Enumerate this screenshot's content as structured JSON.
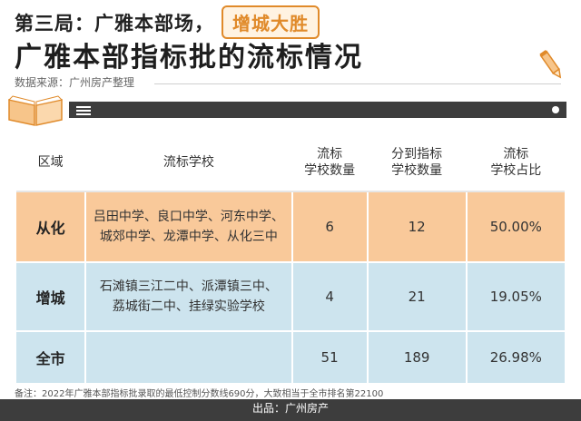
{
  "header": {
    "line1": "第三局：广雅本部场，",
    "badge": "增城大胜",
    "title": "广雅本部指标批的流标情况",
    "source": "数据来源：广州房产整理"
  },
  "table": {
    "columns": [
      "区域",
      "流标学校",
      "流标\n学校数量",
      "分到指标\n学校数量",
      "流标\n学校占比"
    ],
    "rows": [
      {
        "region": "从化",
        "schools_line1": "吕田中学、良口中学、河东中学、",
        "schools_line2": "城郊中学、龙潭中学、从化三中",
        "failed_count": "6",
        "assigned_count": "12",
        "ratio": "50.00%"
      },
      {
        "region": "增城",
        "schools_line1": "石滩镇三江二中、派潭镇三中、",
        "schools_line2": "荔城街二中、挂绿实验学校",
        "failed_count": "4",
        "assigned_count": "21",
        "ratio": "19.05%"
      },
      {
        "region": "全市",
        "schools_line1": "",
        "schools_line2": "",
        "failed_count": "51",
        "assigned_count": "189",
        "ratio": "26.98%"
      }
    ]
  },
  "note": "备注：2022年广雅本部指标批录取的最低控制分数线690分，大致相当于全市排名第22100",
  "footer": "出品：广州房产",
  "colors": {
    "accent": "#e08a2a",
    "orange_row": "#f9c99a",
    "blue_row": "#cde4ee",
    "dark_bar": "#3d3d3d"
  }
}
